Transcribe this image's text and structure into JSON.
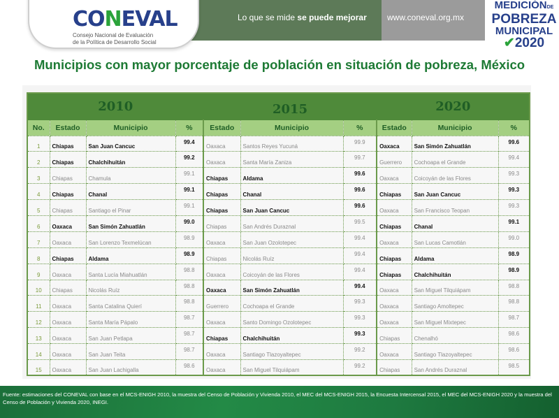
{
  "header": {
    "logo_text": "CONEVAL",
    "logo_subtitle_1": "Consejo Nacional de Evaluación",
    "logo_subtitle_2": "de la Política de Desarrollo Social",
    "slogan_normal": "Lo que se mide ",
    "slogan_bold": "se puede mejorar",
    "url": "www.coneval.org.mx",
    "badge_line1": "MEDICIÓN",
    "badge_de": "DE",
    "badge_line2": "POBREZA",
    "badge_line3": "MUNICIPAL",
    "badge_line4": "2020"
  },
  "title": "Municipios con mayor porcentaje de población en situación de pobreza, México",
  "table": {
    "years": [
      "2010",
      "2015",
      "2020"
    ],
    "col_headers": {
      "no": "No.",
      "estado": "Estado",
      "municipio": "Municipio",
      "pct": "%"
    },
    "rows": [
      {
        "no": "1",
        "y2010": {
          "estado": "Chiapas",
          "municipio": "San Juan Cancuc",
          "pct": "99.4",
          "highlight": true
        },
        "y2015": {
          "estado": "Oaxaca",
          "municipio": "Santos Reyes Yucuná",
          "pct": "99.9",
          "highlight": false
        },
        "y2020": {
          "estado": "Oaxaca",
          "municipio": "San Simón Zahuatlán",
          "pct": "99.6",
          "highlight": true
        }
      },
      {
        "no": "2",
        "y2010": {
          "estado": "Chiapas",
          "municipio": "Chalchihuitán",
          "pct": "99.2",
          "highlight": true
        },
        "y2015": {
          "estado": "Oaxaca",
          "municipio": "Santa María Zaniza",
          "pct": "99.7",
          "highlight": false
        },
        "y2020": {
          "estado": "Guerrero",
          "municipio": "Cochoapa el Grande",
          "pct": "99.4",
          "highlight": false
        }
      },
      {
        "no": "3",
        "y2010": {
          "estado": "Chiapas",
          "municipio": "Chamula",
          "pct": "99.1",
          "highlight": false
        },
        "y2015": {
          "estado": "Chiapas",
          "municipio": "Aldama",
          "pct": "99.6",
          "highlight": true
        },
        "y2020": {
          "estado": "Oaxaca",
          "municipio": "Coicoyán de las Flores",
          "pct": "99.3",
          "highlight": false
        }
      },
      {
        "no": "4",
        "y2010": {
          "estado": "Chiapas",
          "municipio": "Chanal",
          "pct": "99.1",
          "highlight": true
        },
        "y2015": {
          "estado": "Chiapas",
          "municipio": "Chanal",
          "pct": "99.6",
          "highlight": true
        },
        "y2020": {
          "estado": "Chiapas",
          "municipio": "San Juan Cancuc",
          "pct": "99.3",
          "highlight": true
        }
      },
      {
        "no": "5",
        "y2010": {
          "estado": "Chiapas",
          "municipio": "Santiago el Pinar",
          "pct": "99.1",
          "highlight": false
        },
        "y2015": {
          "estado": "Chiapas",
          "municipio": "San Juan Cancuc",
          "pct": "99.6",
          "highlight": true
        },
        "y2020": {
          "estado": "Oaxaca",
          "municipio": "San Francisco Teopan",
          "pct": "99.3",
          "highlight": false
        }
      },
      {
        "no": "6",
        "y2010": {
          "estado": "Oaxaca",
          "municipio": "San Simón Zahuatlán",
          "pct": "99.0",
          "highlight": true
        },
        "y2015": {
          "estado": "Chiapas",
          "municipio": "San Andrés Duraznal",
          "pct": "99.5",
          "highlight": false
        },
        "y2020": {
          "estado": "Chiapas",
          "municipio": "Chanal",
          "pct": "99.1",
          "highlight": true
        }
      },
      {
        "no": "7",
        "y2010": {
          "estado": "Oaxaca",
          "municipio": "San Lorenzo Texmelúcan",
          "pct": "98.9",
          "highlight": false
        },
        "y2015": {
          "estado": "Oaxaca",
          "municipio": "San Juan Ozolotepec",
          "pct": "99.4",
          "highlight": false
        },
        "y2020": {
          "estado": "Oaxaca",
          "municipio": "San Lucas Camotlán",
          "pct": "99.0",
          "highlight": false
        }
      },
      {
        "no": "8",
        "y2010": {
          "estado": "Chiapas",
          "municipio": "Aldama",
          "pct": "98.9",
          "highlight": true
        },
        "y2015": {
          "estado": "Chiapas",
          "municipio": "Nicolás Ruíz",
          "pct": "99.4",
          "highlight": false
        },
        "y2020": {
          "estado": "Chiapas",
          "municipio": "Aldama",
          "pct": "98.9",
          "highlight": true
        }
      },
      {
        "no": "9",
        "y2010": {
          "estado": "Oaxaca",
          "municipio": "Santa Lucía Miahuatlán",
          "pct": "98.8",
          "highlight": false
        },
        "y2015": {
          "estado": "Oaxaca",
          "municipio": "Coicoyán de las Flores",
          "pct": "99.4",
          "highlight": false
        },
        "y2020": {
          "estado": "Chiapas",
          "municipio": "Chalchihuitán",
          "pct": "98.9",
          "highlight": true
        }
      },
      {
        "no": "10",
        "y2010": {
          "estado": "Chiapas",
          "municipio": "Nicolás Ruíz",
          "pct": "98.8",
          "highlight": false
        },
        "y2015": {
          "estado": "Oaxaca",
          "municipio": "San Simón Zahuatlán",
          "pct": "99.4",
          "highlight": true
        },
        "y2020": {
          "estado": "Oaxaca",
          "municipio": "San Miguel Tilquiápam",
          "pct": "98.8",
          "highlight": false
        }
      },
      {
        "no": "11",
        "y2010": {
          "estado": "Oaxaca",
          "municipio": "Santa Catalina Quierí",
          "pct": "98.8",
          "highlight": false
        },
        "y2015": {
          "estado": "Guerrero",
          "municipio": "Cochoapa el Grande",
          "pct": "99.3",
          "highlight": false
        },
        "y2020": {
          "estado": "Oaxaca",
          "municipio": "Santiago Amoltepec",
          "pct": "98.8",
          "highlight": false
        }
      },
      {
        "no": "12",
        "y2010": {
          "estado": "Oaxaca",
          "municipio": "Santa María Pápalo",
          "pct": "98.7",
          "highlight": false
        },
        "y2015": {
          "estado": "Oaxaca",
          "municipio": "Santo Domingo Ozolotepec",
          "pct": "99.3",
          "highlight": false
        },
        "y2020": {
          "estado": "Oaxaca",
          "municipio": "San Miguel Mixtepec",
          "pct": "98.7",
          "highlight": false
        }
      },
      {
        "no": "13",
        "y2010": {
          "estado": "Oaxaca",
          "municipio": "San Juan Petlapa",
          "pct": "98.7",
          "highlight": false
        },
        "y2015": {
          "estado": "Chiapas",
          "municipio": "Chalchihuitán",
          "pct": "99.3",
          "highlight": true
        },
        "y2020": {
          "estado": "Chiapas",
          "municipio": "Chenalhó",
          "pct": "98.6",
          "highlight": false
        }
      },
      {
        "no": "14",
        "y2010": {
          "estado": "Oaxaca",
          "municipio": "San Juan Teita",
          "pct": "98.7",
          "highlight": false
        },
        "y2015": {
          "estado": "Oaxaca",
          "municipio": "Santiago Tlazoyaltepec",
          "pct": "99.2",
          "highlight": false
        },
        "y2020": {
          "estado": "Oaxaca",
          "municipio": "Santiago Tlazoyaltepec",
          "pct": "98.6",
          "highlight": false
        }
      },
      {
        "no": "15",
        "y2010": {
          "estado": "Oaxaca",
          "municipio": "San Juan Lachigalla",
          "pct": "98.6",
          "highlight": false
        },
        "y2015": {
          "estado": "Oaxaca",
          "municipio": "San Miguel Tilquiápam",
          "pct": "99.2",
          "highlight": false
        },
        "y2020": {
          "estado": "Chiapas",
          "municipio": "San Andrés Duraznal",
          "pct": "98.5",
          "highlight": false
        }
      }
    ]
  },
  "footer": "Fuente: estimaciones del CONEVAL con base en el MCS-ENIGH 2010, la muestra del Censo de Población y Vivienda 2010, el MEC del MCS-ENIGH 2015, la Encuesta Intercensal 2015, el MEC del MCS-ENIGH 2020 y la muestra del Censo de Población y Vivienda 2020, INEGI."
}
